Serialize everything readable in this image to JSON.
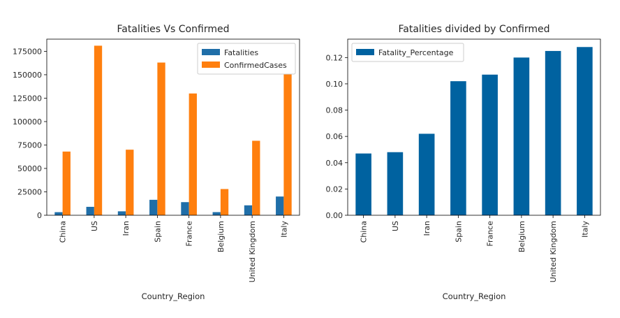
{
  "colors": {
    "fatalities": "#1f6ea8",
    "confirmed": "#ff7f0e",
    "percentage": "#0062a0",
    "axes": "#000000",
    "legend_border": "#cccccc"
  },
  "chart_data": [
    {
      "type": "bar",
      "title": "Fatalities Vs Confirmed",
      "xlabel": "Country_Region",
      "ylabel": "",
      "categories": [
        "China",
        "US",
        "Iran",
        "Spain",
        "France",
        "Belgium",
        "United Kingdom",
        "Italy"
      ],
      "series": [
        {
          "name": "Fatalities",
          "values": [
            3300,
            9000,
            4200,
            16500,
            14000,
            3350,
            10600,
            20000
          ]
        },
        {
          "name": "ConfirmedCases",
          "values": [
            68000,
            181000,
            70000,
            163000,
            130000,
            28000,
            79500,
            153000
          ]
        }
      ],
      "ylim": [
        0,
        188000
      ],
      "yticks": [
        0,
        25000,
        50000,
        75000,
        100000,
        125000,
        150000,
        175000
      ],
      "ytick_labels": [
        "0",
        "25000",
        "50000",
        "75000",
        "100000",
        "125000",
        "150000",
        "175000"
      ],
      "legend": "top-right",
      "grid": false
    },
    {
      "type": "bar",
      "title": "Fatalities divided by Confirmed",
      "xlabel": "Country_Region",
      "ylabel": "",
      "categories": [
        "China",
        "US",
        "Iran",
        "Spain",
        "France",
        "Belgium",
        "United Kingdom",
        "Italy"
      ],
      "series": [
        {
          "name": "Fatality_Percentage",
          "values": [
            0.047,
            0.048,
            0.062,
            0.102,
            0.107,
            0.12,
            0.125,
            0.128
          ]
        }
      ],
      "ylim": [
        0,
        0.134
      ],
      "yticks": [
        0,
        0.02,
        0.04,
        0.06,
        0.08,
        0.1,
        0.12
      ],
      "ytick_labels": [
        "0.00",
        "0.02",
        "0.04",
        "0.06",
        "0.08",
        "0.10",
        "0.12"
      ],
      "legend": "top-left",
      "grid": false
    }
  ]
}
